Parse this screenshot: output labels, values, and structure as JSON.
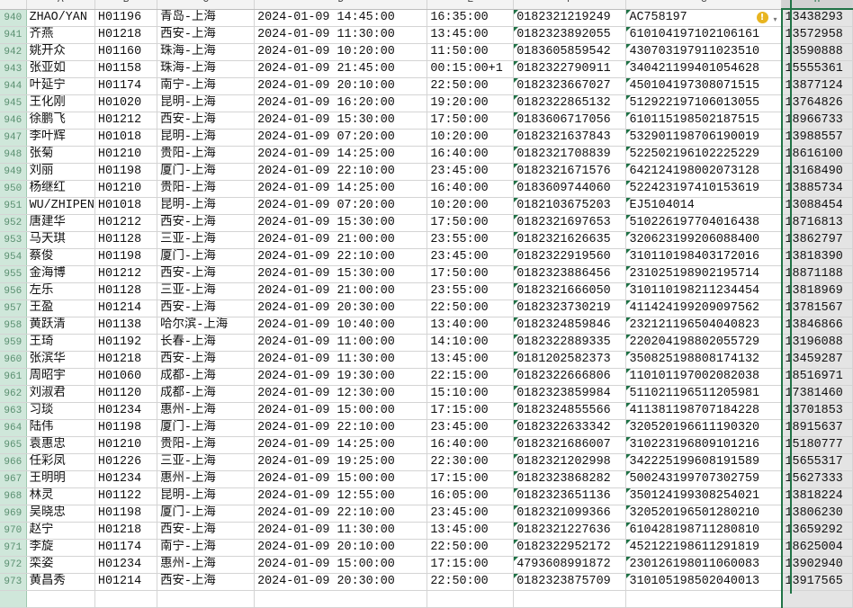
{
  "columns": [
    "A",
    "B",
    "C",
    "D",
    "E",
    "F",
    "G",
    "H"
  ],
  "selected_column": "H",
  "accent_color": "#217346",
  "rows": [
    {
      "n": "940",
      "a": "ZHAO/YAN",
      "b": "H01196",
      "c": "青岛-上海",
      "d": "2024-01-09 14:45:00",
      "e": "16:35:00",
      "f": "0182321219249",
      "g": "AC758197",
      "h": "13438293"
    },
    {
      "n": "941",
      "a": "齐燕",
      "b": "H01218",
      "c": "西安-上海",
      "d": "2024-01-09 11:30:00",
      "e": "13:45:00",
      "f": "0182323892055",
      "g": "610104197102106161",
      "h": "13572958"
    },
    {
      "n": "942",
      "a": "姚开众",
      "b": "H01160",
      "c": "珠海-上海",
      "d": "2024-01-09 10:20:00",
      "e": "11:50:00",
      "f": "0183605859542",
      "g": "430703197911023510",
      "h": "13590888"
    },
    {
      "n": "943",
      "a": "张亚如",
      "b": "H01158",
      "c": "珠海-上海",
      "d": "2024-01-09 21:45:00",
      "e": "00:15:00+1",
      "f": "0182322790911",
      "g": "340421199401054628",
      "h": "15555361"
    },
    {
      "n": "944",
      "a": "叶延宁",
      "b": "H01174",
      "c": "南宁-上海",
      "d": "2024-01-09 20:10:00",
      "e": "22:50:00",
      "f": "0182323667027",
      "g": "450104197308071515",
      "h": "13877124"
    },
    {
      "n": "945",
      "a": "王化刚",
      "b": "H01020",
      "c": "昆明-上海",
      "d": "2024-01-09 16:20:00",
      "e": "19:20:00",
      "f": "0182322865132",
      "g": "512922197106013055",
      "h": "13764826"
    },
    {
      "n": "946",
      "a": "徐鹏飞",
      "b": "H01212",
      "c": "西安-上海",
      "d": "2024-01-09 15:30:00",
      "e": "17:50:00",
      "f": "0183606717056",
      "g": "610115198502187515",
      "h": "18966733"
    },
    {
      "n": "947",
      "a": "李叶辉",
      "b": "H01018",
      "c": "昆明-上海",
      "d": "2024-01-09 07:20:00",
      "e": "10:20:00",
      "f": "0182321637843",
      "g": "532901198706190019",
      "h": "13988557"
    },
    {
      "n": "948",
      "a": "张菊",
      "b": "H01210",
      "c": "贵阳-上海",
      "d": "2024-01-09 14:25:00",
      "e": "16:40:00",
      "f": "0182321708839",
      "g": "522502196102225229",
      "h": "18616100"
    },
    {
      "n": "949",
      "a": "刘丽",
      "b": "H01198",
      "c": "厦门-上海",
      "d": "2024-01-09 22:10:00",
      "e": "23:45:00",
      "f": "0182321671576",
      "g": "642124198002073128",
      "h": "13168490"
    },
    {
      "n": "950",
      "a": "杨继红",
      "b": "H01210",
      "c": "贵阳-上海",
      "d": "2024-01-09 14:25:00",
      "e": "16:40:00",
      "f": "0183609744060",
      "g": "522423197410153619",
      "h": "13885734"
    },
    {
      "n": "951",
      "a": "WU/ZHIPEN",
      "b": "H01018",
      "c": "昆明-上海",
      "d": "2024-01-09 07:20:00",
      "e": "10:20:00",
      "f": "0182103675203",
      "g": "EJ5104014",
      "h": "13088454"
    },
    {
      "n": "952",
      "a": "唐建华",
      "b": "H01212",
      "c": "西安-上海",
      "d": "2024-01-09 15:30:00",
      "e": "17:50:00",
      "f": "0182321697653",
      "g": "510226197704016438",
      "h": "18716813"
    },
    {
      "n": "953",
      "a": "马天琪",
      "b": "H01128",
      "c": "三亚-上海",
      "d": "2024-01-09 21:00:00",
      "e": "23:55:00",
      "f": "0182321626635",
      "g": "320623199206088400",
      "h": "13862797"
    },
    {
      "n": "954",
      "a": "蔡俊",
      "b": "H01198",
      "c": "厦门-上海",
      "d": "2024-01-09 22:10:00",
      "e": "23:45:00",
      "f": "0182322919560",
      "g": "310110198403172016",
      "h": "13818390"
    },
    {
      "n": "955",
      "a": "金海博",
      "b": "H01212",
      "c": "西安-上海",
      "d": "2024-01-09 15:30:00",
      "e": "17:50:00",
      "f": "0182323886456",
      "g": "231025198902195714",
      "h": "18871188"
    },
    {
      "n": "956",
      "a": "左乐",
      "b": "H01128",
      "c": "三亚-上海",
      "d": "2024-01-09 21:00:00",
      "e": "23:55:00",
      "f": "0182321666050",
      "g": "310110198211234454",
      "h": "13818969"
    },
    {
      "n": "957",
      "a": "王盈",
      "b": "H01214",
      "c": "西安-上海",
      "d": "2024-01-09 20:30:00",
      "e": "22:50:00",
      "f": "0182323730219",
      "g": "411424199209097562",
      "h": "13781567"
    },
    {
      "n": "958",
      "a": "黄跃清",
      "b": "H01138",
      "c": "哈尔滨-上海",
      "d": "2024-01-09 10:40:00",
      "e": "13:40:00",
      "f": "0182324859846",
      "g": "232121196504040823",
      "h": "13846866"
    },
    {
      "n": "959",
      "a": "王琦",
      "b": "H01192",
      "c": "长春-上海",
      "d": "2024-01-09 11:00:00",
      "e": "14:10:00",
      "f": "0182322889335",
      "g": "220204198802055729",
      "h": "13196088"
    },
    {
      "n": "960",
      "a": "张滨华",
      "b": "H01218",
      "c": "西安-上海",
      "d": "2024-01-09 11:30:00",
      "e": "13:45:00",
      "f": "0181202582373",
      "g": "350825198808174132",
      "h": "13459287"
    },
    {
      "n": "961",
      "a": "周昭宇",
      "b": "H01060",
      "c": "成都-上海",
      "d": "2024-01-09 19:30:00",
      "e": "22:15:00",
      "f": "0182322666806",
      "g": "110101197002082038",
      "h": "18516971"
    },
    {
      "n": "962",
      "a": "刘淑君",
      "b": "H01120",
      "c": "成都-上海",
      "d": "2024-01-09 12:30:00",
      "e": "15:10:00",
      "f": "0182323859984",
      "g": "511021196511205981",
      "h": "17381460"
    },
    {
      "n": "963",
      "a": "习琰",
      "b": "H01234",
      "c": "惠州-上海",
      "d": "2024-01-09 15:00:00",
      "e": "17:15:00",
      "f": "0182324855566",
      "g": "411381198707184228",
      "h": "13701853"
    },
    {
      "n": "964",
      "a": "陆伟",
      "b": "H01198",
      "c": "厦门-上海",
      "d": "2024-01-09 22:10:00",
      "e": "23:45:00",
      "f": "0182322633342",
      "g": "320520196611190320",
      "h": "18915637"
    },
    {
      "n": "965",
      "a": "袁惠忠",
      "b": "H01210",
      "c": "贵阳-上海",
      "d": "2024-01-09 14:25:00",
      "e": "16:40:00",
      "f": "0182321686007",
      "g": "310223196809101216",
      "h": "15180777"
    },
    {
      "n": "966",
      "a": "任彩凤",
      "b": "H01226",
      "c": "三亚-上海",
      "d": "2024-01-09 19:25:00",
      "e": "22:30:00",
      "f": "0182321202998",
      "g": "342225199608191589",
      "h": "15655317"
    },
    {
      "n": "967",
      "a": "王明明",
      "b": "H01234",
      "c": "惠州-上海",
      "d": "2024-01-09 15:00:00",
      "e": "17:15:00",
      "f": "0182323868282",
      "g": "500243199707302759",
      "h": "15627333"
    },
    {
      "n": "968",
      "a": "林灵",
      "b": "H01122",
      "c": "昆明-上海",
      "d": "2024-01-09 12:55:00",
      "e": "16:05:00",
      "f": "0182323651136",
      "g": "350124199308254021",
      "h": "13818224"
    },
    {
      "n": "969",
      "a": "吴晓忠",
      "b": "H01198",
      "c": "厦门-上海",
      "d": "2024-01-09 22:10:00",
      "e": "23:45:00",
      "f": "0182321099366",
      "g": "320520196501280210",
      "h": "13806230"
    },
    {
      "n": "970",
      "a": "赵宁",
      "b": "H01218",
      "c": "西安-上海",
      "d": "2024-01-09 11:30:00",
      "e": "13:45:00",
      "f": "0182321227636",
      "g": "610428198711280810",
      "h": "13659292"
    },
    {
      "n": "971",
      "a": "李旋",
      "b": "H01174",
      "c": "南宁-上海",
      "d": "2024-01-09 20:10:00",
      "e": "22:50:00",
      "f": "0182322952172",
      "g": "452122198611291819",
      "h": "18625004"
    },
    {
      "n": "972",
      "a": "栾姿",
      "b": "H01234",
      "c": "惠州-上海",
      "d": "2024-01-09 15:00:00",
      "e": "17:15:00",
      "f": "4793608991872",
      "g": "230126198011060083",
      "h": "13902940"
    },
    {
      "n": "973",
      "a": "黄昌秀",
      "b": "H01214",
      "c": "西安-上海",
      "d": "2024-01-09 20:30:00",
      "e": "22:50:00",
      "f": "0182323875709",
      "g": "310105198502040013",
      "h": "13917565"
    }
  ],
  "warning_icon": {
    "row": "940",
    "column": "G",
    "icon": "warning-icon",
    "color": "#e8b521"
  }
}
